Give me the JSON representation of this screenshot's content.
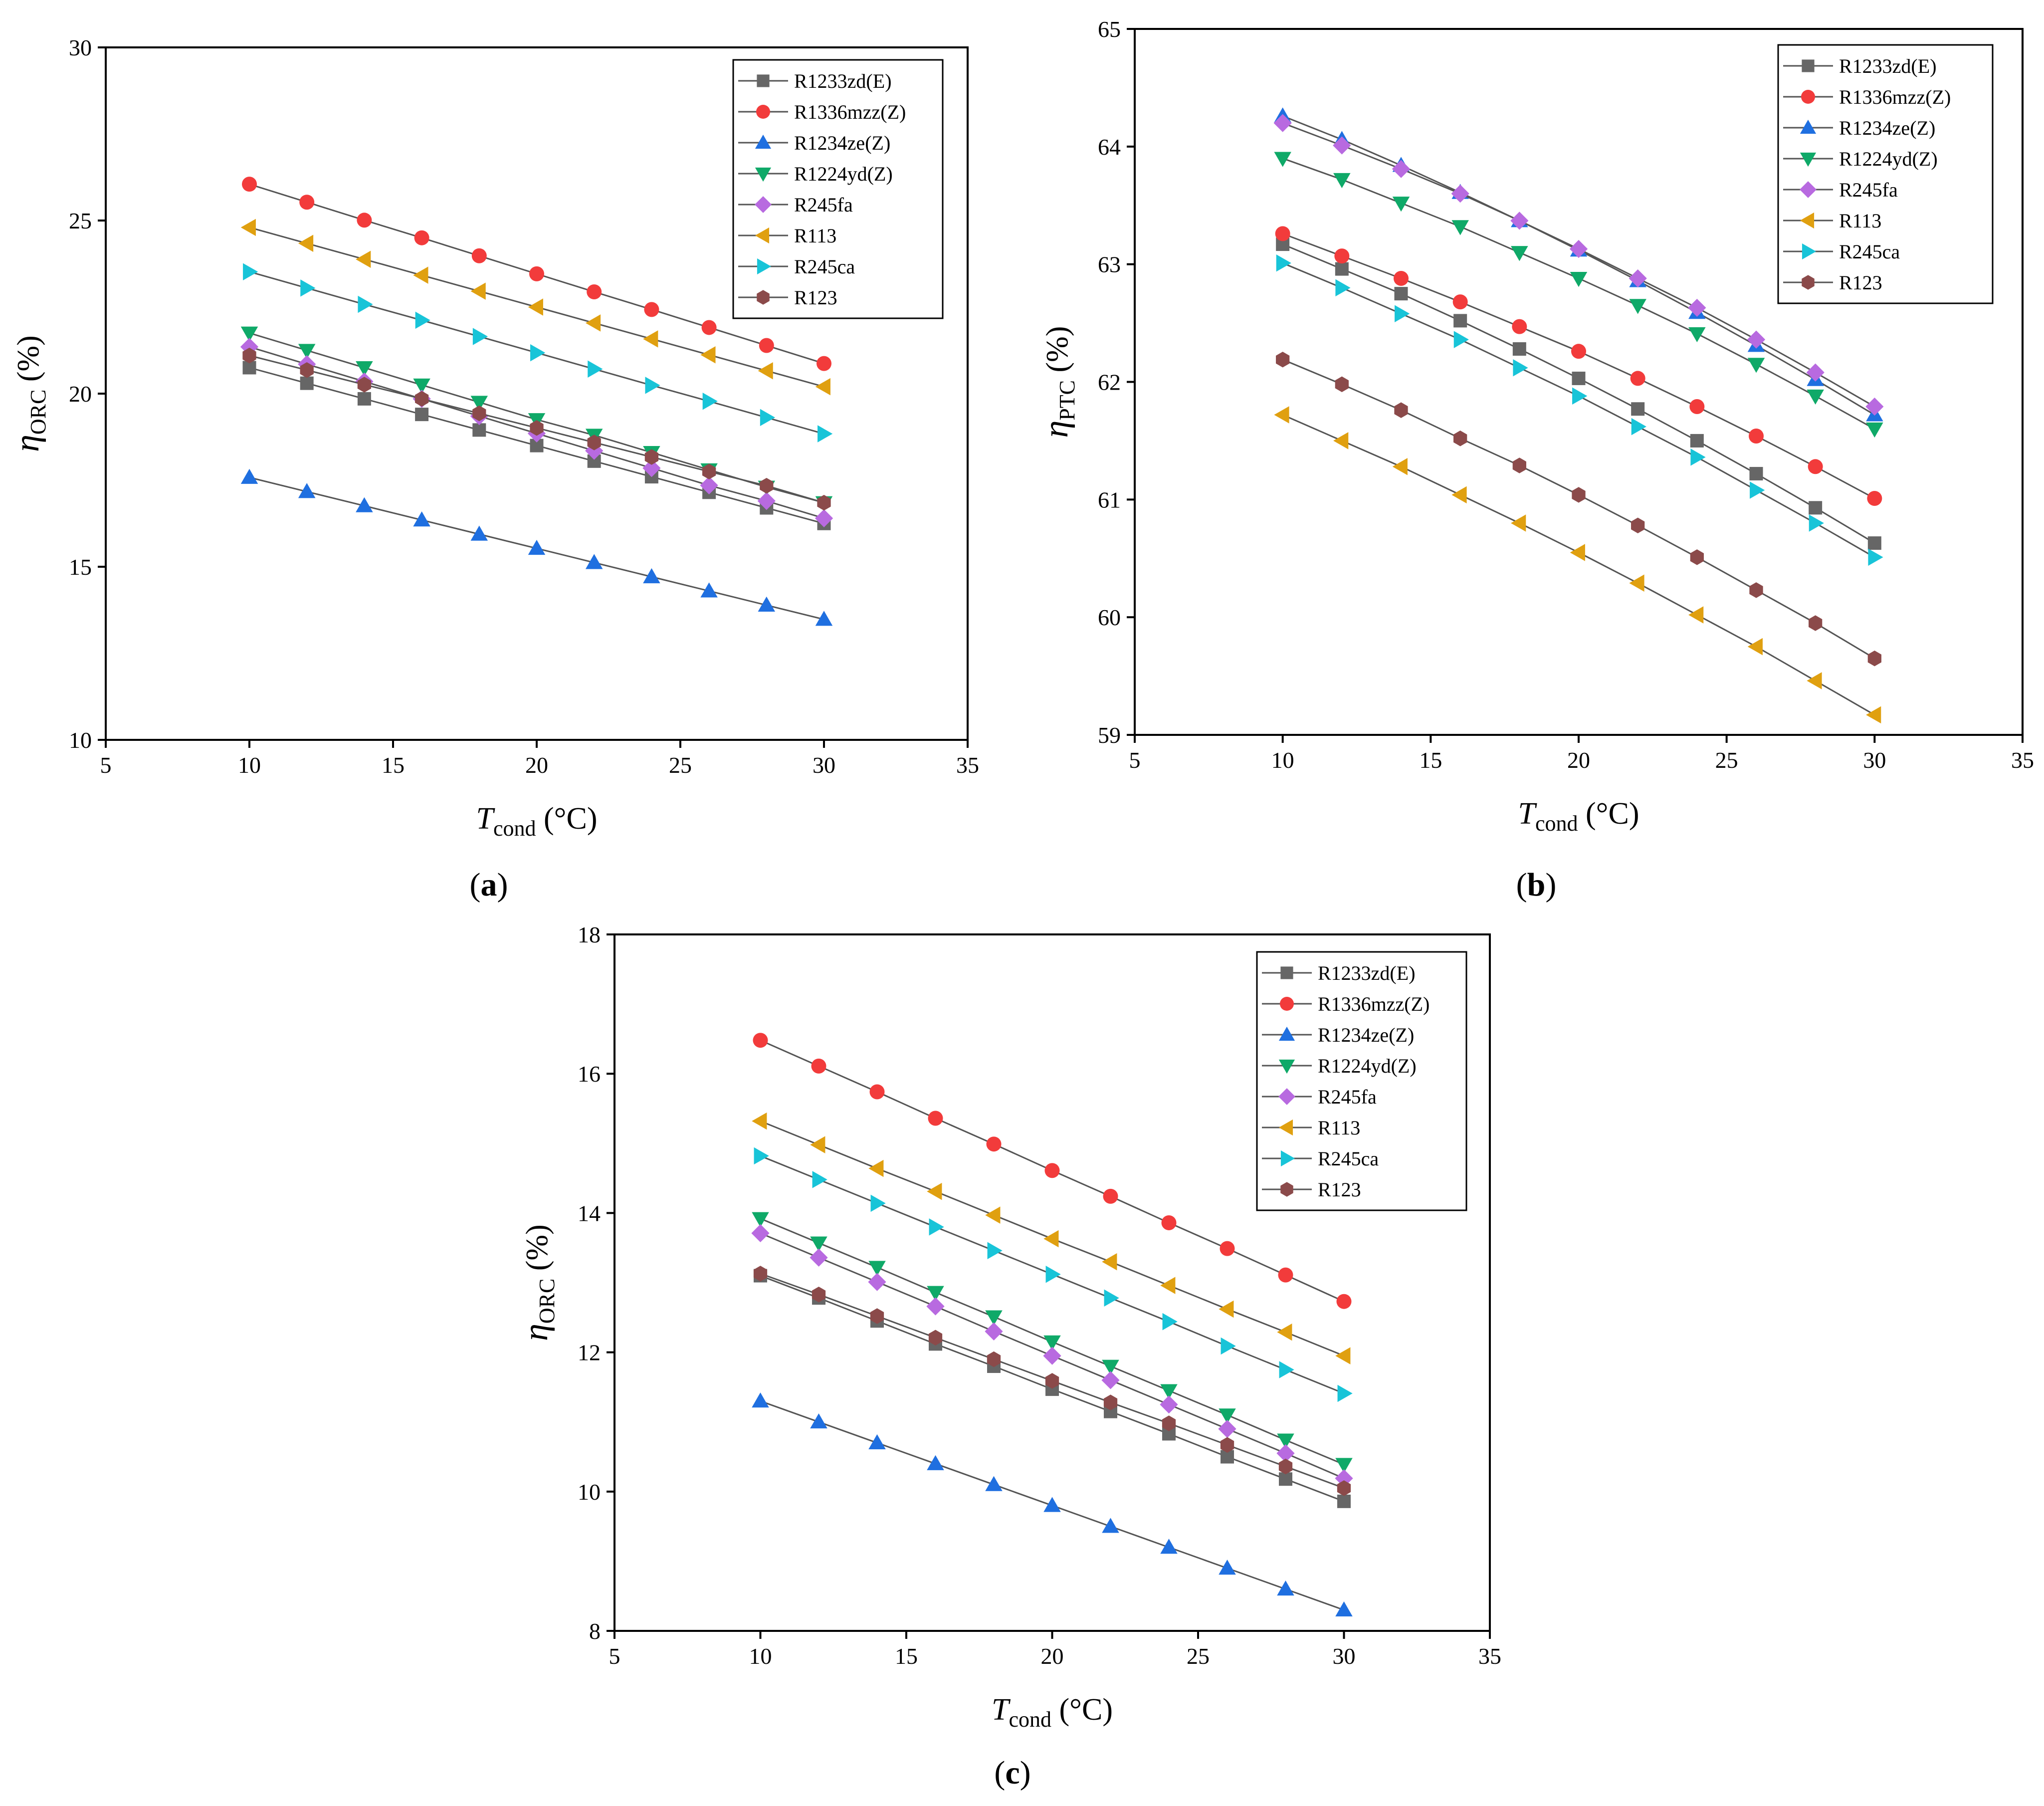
{
  "chart_data": [
    {
      "type": "line",
      "panel_label": "a",
      "xlabel": "T",
      "xlabel_sub": "cond",
      "xlabel_unit": " (°C)",
      "ylabel": "η",
      "ylabel_sub": "ORC",
      "ylabel_unit": " (%)",
      "xlim": [
        5,
        35
      ],
      "ylim": [
        10,
        30
      ],
      "xticks": [
        5,
        10,
        15,
        20,
        25,
        30,
        35
      ],
      "yticks": [
        10,
        15,
        20,
        25,
        30
      ],
      "legend_position": "top-right",
      "x": [
        10,
        12,
        14,
        16,
        18,
        20,
        22,
        24,
        26,
        28,
        30
      ],
      "series": [
        {
          "name": "R1233zd(E)",
          "marker": "square",
          "color": "#666666",
          "values": [
            20.75,
            20.3,
            19.85,
            19.4,
            18.95,
            18.5,
            18.05,
            17.6,
            17.15,
            16.7,
            16.25
          ]
        },
        {
          "name": "R1336mzz(Z)",
          "marker": "circle",
          "color": "#f23b3b",
          "values": [
            26.05,
            25.53,
            25.01,
            24.5,
            23.98,
            23.46,
            22.94,
            22.43,
            21.91,
            21.39,
            20.87
          ]
        },
        {
          "name": "R1234ze(Z)",
          "marker": "triangle-up",
          "color": "#1f6fe0",
          "values": [
            17.58,
            17.17,
            16.76,
            16.35,
            15.94,
            15.53,
            15.12,
            14.71,
            14.3,
            13.89,
            13.48
          ]
        },
        {
          "name": "R1224yd(Z)",
          "marker": "triangle-down",
          "color": "#0fa968",
          "values": [
            21.75,
            21.25,
            20.75,
            20.25,
            19.75,
            19.25,
            18.8,
            18.3,
            17.8,
            17.3,
            16.85
          ]
        },
        {
          "name": "R245fa",
          "marker": "diamond",
          "color": "#b86ae0",
          "values": [
            21.35,
            20.85,
            20.35,
            19.85,
            19.35,
            18.85,
            18.35,
            17.85,
            17.35,
            16.9,
            16.4
          ]
        },
        {
          "name": "R113",
          "marker": "triangle-left",
          "color": "#e0a010",
          "values": [
            24.8,
            24.34,
            23.88,
            23.42,
            22.96,
            22.5,
            22.04,
            21.58,
            21.12,
            20.66,
            20.2
          ]
        },
        {
          "name": "R245ca",
          "marker": "triangle-right",
          "color": "#18c4d8",
          "values": [
            23.52,
            23.05,
            22.58,
            22.12,
            21.65,
            21.18,
            20.71,
            20.24,
            19.78,
            19.31,
            18.84
          ]
        },
        {
          "name": "R123",
          "marker": "hexagon",
          "color": "#8b4a4a",
          "values": [
            21.1,
            20.68,
            20.26,
            19.85,
            19.43,
            19.01,
            18.59,
            18.17,
            17.75,
            17.34,
            16.85
          ]
        }
      ]
    },
    {
      "type": "line",
      "panel_label": "b",
      "xlabel": "T",
      "xlabel_sub": "cond",
      "xlabel_unit": " (°C)",
      "ylabel": "η",
      "ylabel_sub": "PTC",
      "ylabel_unit": " (%)",
      "xlim": [
        5,
        35
      ],
      "ylim": [
        59,
        65
      ],
      "xticks": [
        5,
        10,
        15,
        20,
        25,
        30,
        35
      ],
      "yticks": [
        59,
        60,
        61,
        62,
        63,
        64,
        65
      ],
      "legend_position": "top-right",
      "x": [
        10,
        12,
        14,
        16,
        18,
        20,
        22,
        24,
        26,
        28,
        30
      ],
      "series": [
        {
          "name": "R1233zd(E)",
          "marker": "square",
          "color": "#666666",
          "values": [
            63.17,
            62.96,
            62.75,
            62.52,
            62.28,
            62.03,
            61.77,
            61.5,
            61.22,
            60.93,
            60.63
          ]
        },
        {
          "name": "R1336mzz(Z)",
          "marker": "circle",
          "color": "#f23b3b",
          "values": [
            63.26,
            63.07,
            62.88,
            62.68,
            62.47,
            62.26,
            62.03,
            61.79,
            61.54,
            61.28,
            61.01
          ]
        },
        {
          "name": "R1234ze(Z)",
          "marker": "triangle-up",
          "color": "#1f6fe0",
          "values": [
            64.26,
            64.06,
            63.84,
            63.61,
            63.37,
            63.12,
            62.86,
            62.59,
            62.31,
            62.02,
            61.72
          ]
        },
        {
          "name": "R1224yd(Z)",
          "marker": "triangle-down",
          "color": "#0fa968",
          "values": [
            63.9,
            63.72,
            63.52,
            63.32,
            63.1,
            62.88,
            62.65,
            62.41,
            62.15,
            61.88,
            61.6
          ]
        },
        {
          "name": "R245fa",
          "marker": "diamond",
          "color": "#b86ae0",
          "values": [
            64.2,
            64.01,
            63.81,
            63.6,
            63.37,
            63.13,
            62.88,
            62.63,
            62.36,
            62.08,
            61.79
          ]
        },
        {
          "name": "R113",
          "marker": "triangle-left",
          "color": "#e0a010",
          "values": [
            61.72,
            61.5,
            61.28,
            61.04,
            60.8,
            60.55,
            60.29,
            60.02,
            59.75,
            59.46,
            59.17
          ]
        },
        {
          "name": "R245ca",
          "marker": "triangle-right",
          "color": "#18c4d8",
          "values": [
            63.01,
            62.8,
            62.58,
            62.36,
            62.12,
            61.88,
            61.62,
            61.36,
            61.08,
            60.8,
            60.51
          ]
        },
        {
          "name": "R123",
          "marker": "hexagon",
          "color": "#8b4a4a",
          "values": [
            62.19,
            61.98,
            61.76,
            61.52,
            61.29,
            61.04,
            60.78,
            60.51,
            60.23,
            59.95,
            59.65
          ]
        }
      ]
    },
    {
      "type": "line",
      "panel_label": "c",
      "xlabel": "T",
      "xlabel_sub": "cond",
      "xlabel_unit": " (°C)",
      "ylabel": "η",
      "ylabel_sub": "ORC",
      "ylabel_unit": " (%)",
      "xlim": [
        5,
        35
      ],
      "ylim": [
        8,
        18
      ],
      "xticks": [
        5,
        10,
        15,
        20,
        25,
        30,
        35
      ],
      "yticks": [
        8,
        10,
        12,
        14,
        16,
        18
      ],
      "legend_position": "top-right",
      "x": [
        10,
        12,
        14,
        16,
        18,
        20,
        22,
        24,
        26,
        28,
        30
      ],
      "series": [
        {
          "name": "R1233zd(E)",
          "marker": "square",
          "color": "#666666",
          "values": [
            13.1,
            12.78,
            12.45,
            12.12,
            11.8,
            11.47,
            11.15,
            10.83,
            10.5,
            10.18,
            9.86
          ]
        },
        {
          "name": "R1336mzz(Z)",
          "marker": "circle",
          "color": "#f23b3b",
          "values": [
            16.48,
            16.11,
            15.74,
            15.36,
            14.99,
            14.61,
            14.24,
            13.86,
            13.49,
            13.11,
            12.73
          ]
        },
        {
          "name": "R1234ze(Z)",
          "marker": "triangle-up",
          "color": "#1f6fe0",
          "values": [
            11.3,
            11.0,
            10.7,
            10.4,
            10.1,
            9.8,
            9.5,
            9.2,
            8.9,
            8.6,
            8.3
          ]
        },
        {
          "name": "R1224yd(Z)",
          "marker": "triangle-down",
          "color": "#0fa968",
          "values": [
            13.92,
            13.57,
            13.22,
            12.86,
            12.51,
            12.15,
            11.8,
            11.45,
            11.1,
            10.74,
            10.39
          ]
        },
        {
          "name": "R245fa",
          "marker": "diamond",
          "color": "#b86ae0",
          "values": [
            13.71,
            13.36,
            13.01,
            12.66,
            12.3,
            11.95,
            11.6,
            11.25,
            10.9,
            10.55,
            10.19
          ]
        },
        {
          "name": "R113",
          "marker": "triangle-left",
          "color": "#e0a010",
          "values": [
            15.32,
            14.98,
            14.64,
            14.31,
            13.97,
            13.63,
            13.3,
            12.96,
            12.62,
            12.29,
            11.95
          ]
        },
        {
          "name": "R245ca",
          "marker": "triangle-right",
          "color": "#18c4d8",
          "values": [
            14.82,
            14.48,
            14.14,
            13.8,
            13.46,
            13.12,
            12.78,
            12.44,
            12.09,
            11.75,
            11.41
          ]
        },
        {
          "name": "R123",
          "marker": "hexagon",
          "color": "#8b4a4a",
          "values": [
            13.13,
            12.83,
            12.52,
            12.21,
            11.9,
            11.59,
            11.28,
            10.98,
            10.67,
            10.36,
            10.05
          ]
        }
      ]
    }
  ]
}
